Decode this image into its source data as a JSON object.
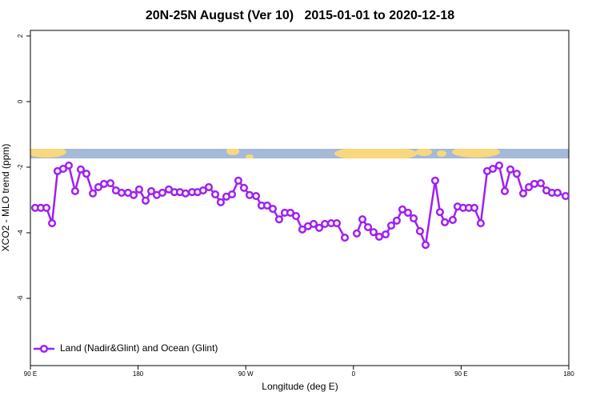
{
  "chart_data": {
    "type": "line",
    "title": "20N-25N August (Ver 10)   2015-01-01 to 2020-12-18",
    "x_label": "Longitude (deg E)",
    "y_label": "XCO2 - MLO trend (ppm)",
    "x": [
      94.0,
      98.7,
      103.4,
      108.1,
      112.7,
      117.4,
      122.1,
      127.4,
      132.1,
      136.8,
      142.2,
      146.8,
      151.5,
      156.9,
      161.5,
      166.2,
      171.6,
      176.3,
      180.9,
      186.3,
      191.0,
      195.6,
      200.3,
      205.7,
      210.4,
      215.0,
      219.7,
      225.1,
      229.7,
      234.4,
      239.1,
      244.5,
      249.1,
      253.8,
      258.5,
      263.8,
      268.5,
      273.2,
      278.6,
      283.2,
      287.9,
      292.6,
      297.9,
      302.6,
      307.3,
      312.0,
      317.3,
      322.0,
      326.7,
      331.4,
      336.1,
      341.4,
      346.1,
      352.8,
      357.5,
      362.8,
      367.5,
      372.2,
      376.8,
      381.5,
      386.9,
      391.6,
      396.2,
      400.9,
      405.6,
      410.3,
      415.6,
      420.3,
      428.3,
      432.3,
      436.4,
      443.0,
      447.0,
      451.7,
      456.4,
      461.1,
      466.4,
      471.8,
      476.5,
      481.8,
      486.5,
      491.2,
      496.5,
      501.9,
      506.6,
      511.2,
      516.6,
      521.3,
      525.9,
      530.6,
      537.3
    ],
    "series": [
      {
        "name": "Land (Nadir&Glint) and Ocean (Glint)",
        "color": "#a020f0",
        "values": [
          -3.24,
          -3.24,
          -3.24,
          -3.71,
          -2.12,
          -2.05,
          -1.95,
          -2.73,
          -2.07,
          -2.2,
          -2.8,
          -2.61,
          -2.51,
          -2.49,
          -2.71,
          -2.78,
          -2.78,
          -2.85,
          -2.68,
          -3.02,
          -2.73,
          -2.85,
          -2.78,
          -2.68,
          -2.76,
          -2.76,
          -2.8,
          -2.76,
          -2.76,
          -2.71,
          -2.61,
          -2.83,
          -3.07,
          -2.9,
          -2.83,
          -2.41,
          -2.63,
          -2.85,
          -2.88,
          -3.17,
          -3.17,
          -3.27,
          -3.59,
          -3.39,
          -3.39,
          -3.49,
          -3.9,
          -3.8,
          -3.73,
          -3.85,
          -3.73,
          -3.71,
          -3.71,
          -4.15,
          null,
          -4.02,
          -3.59,
          -3.83,
          -3.98,
          -4.12,
          -4.05,
          -3.78,
          -3.63,
          -3.29,
          -3.39,
          -3.56,
          -3.95,
          -4.37,
          -2.41,
          -3.37,
          -3.68,
          -3.61,
          -3.2,
          -3.24,
          -3.24,
          -3.24,
          -3.71,
          -2.12,
          -2.05,
          -1.95,
          -2.73,
          -2.07,
          -2.2,
          -2.8,
          -2.61,
          -2.51,
          -2.49,
          -2.71,
          -2.78,
          -2.78,
          -2.88
        ]
      }
    ],
    "xlim": [
      90,
      540
    ],
    "xticks": [
      {
        "value": 90,
        "label": "90 E"
      },
      180,
      {
        "value": 270,
        "label": "90 W"
      },
      {
        "value": 360,
        "label": "0"
      },
      {
        "value": 450,
        "label": "90 E"
      },
      {
        "value": 540,
        "label": "180"
      }
    ],
    "ylim": [
      -8.05,
      2.17
    ],
    "yticks": [
      2,
      0,
      -2,
      -4,
      -6
    ],
    "legend": "bottomleft"
  }
}
